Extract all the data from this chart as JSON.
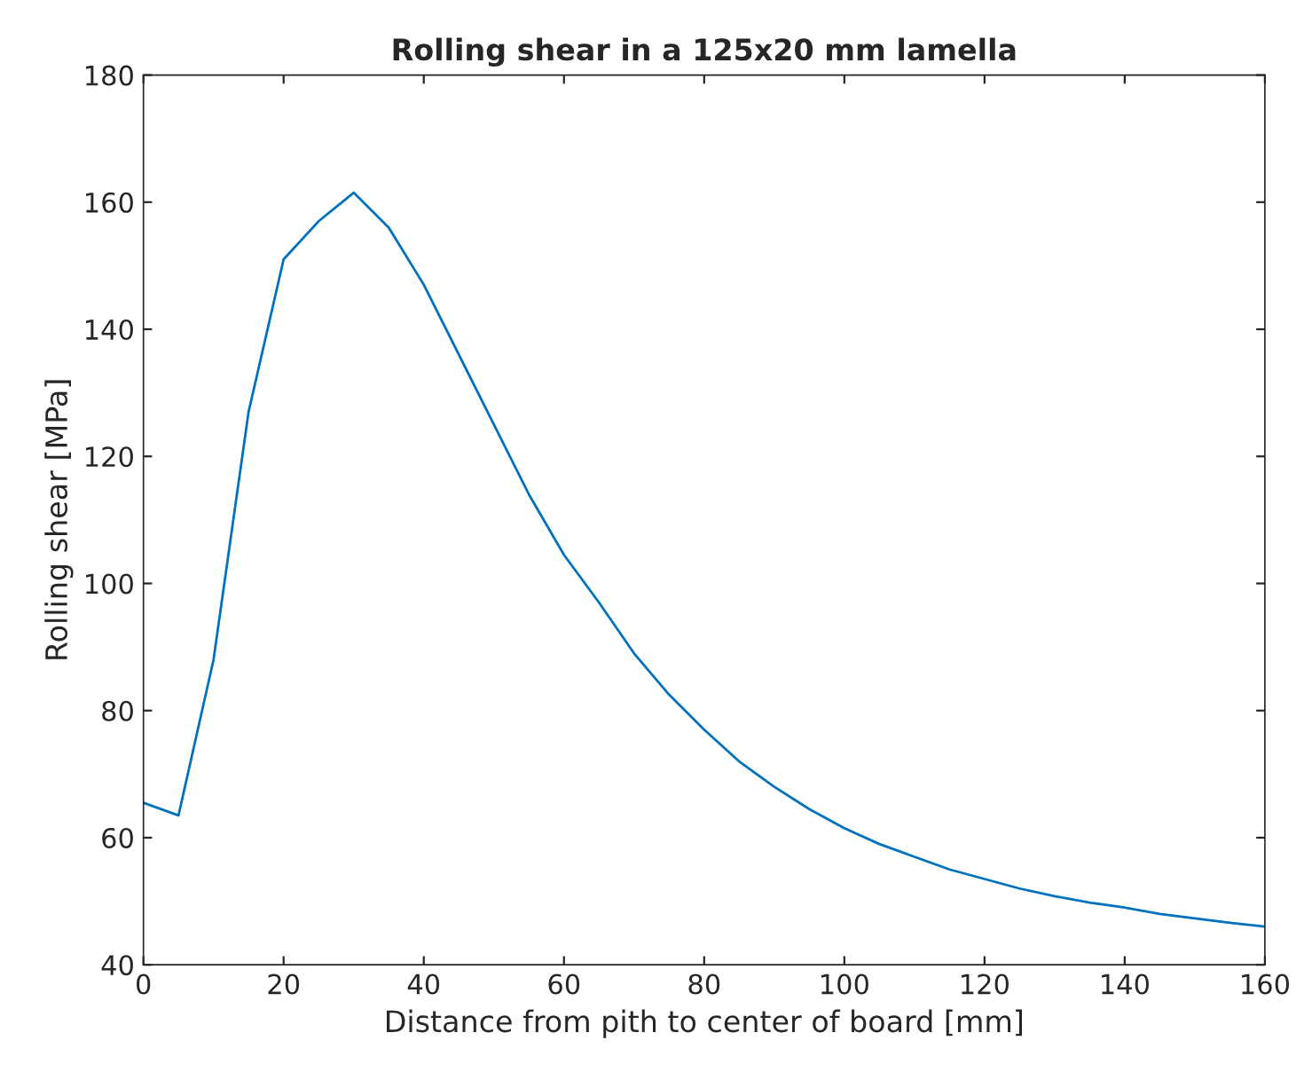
{
  "chart_data": {
    "type": "line",
    "title": "Rolling shear in a 125x20 mm lamella",
    "xlabel": "Distance from pith to center of board [mm]",
    "ylabel": "Rolling shear [MPa]",
    "x": [
      0,
      5,
      10,
      15,
      20,
      25,
      30,
      35,
      40,
      45,
      50,
      55,
      60,
      65,
      70,
      75,
      80,
      85,
      90,
      95,
      100,
      105,
      110,
      115,
      120,
      125,
      130,
      135,
      140,
      145,
      150,
      155,
      160
    ],
    "series": [
      {
        "color": "#0072bd",
        "values": [
          65.5,
          63.5,
          88,
          127,
          151,
          157,
          161.5,
          156,
          147,
          136,
          125,
          114,
          104.5,
          97,
          89,
          82.5,
          77,
          72,
          68,
          64.5,
          61.5,
          59,
          57,
          55,
          53.5,
          52,
          50.8,
          49.8,
          49,
          48,
          47.3,
          46.6,
          46
        ]
      }
    ],
    "xlim": [
      0,
      160
    ],
    "ylim": [
      40,
      180
    ],
    "xticks": [
      0,
      20,
      40,
      60,
      80,
      100,
      120,
      140,
      160
    ],
    "yticks": [
      40,
      60,
      80,
      100,
      120,
      140,
      160,
      180
    ],
    "grid": false,
    "legend": false
  }
}
